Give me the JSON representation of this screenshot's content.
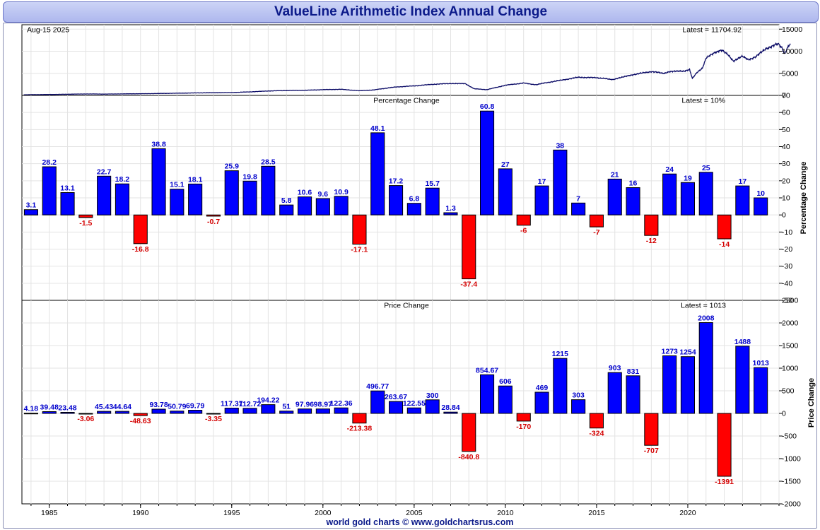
{
  "title": "ValueLine Arithmetic Index Annual Change",
  "footer": "world gold charts © www.goldchartsrus.com",
  "chart_data": [
    {
      "type": "line",
      "date_label": "Aug-15  2025",
      "latest_label": "Latest = 11704.92",
      "ylim": [
        0,
        16000
      ],
      "y_ticks": [
        0,
        5000,
        10000,
        15000
      ],
      "grid": true,
      "color": "#0b0b66",
      "points": [
        [
          1983.6,
          150
        ],
        [
          1985,
          200
        ],
        [
          1987,
          330
        ],
        [
          1988,
          300
        ],
        [
          1990,
          380
        ],
        [
          1991,
          430
        ],
        [
          1993,
          560
        ],
        [
          1995,
          650
        ],
        [
          1996,
          800
        ],
        [
          1997,
          1000
        ],
        [
          1998,
          1100
        ],
        [
          1999,
          1150
        ],
        [
          2000,
          1300
        ],
        [
          2001,
          1380
        ],
        [
          2002,
          1050
        ],
        [
          2002.8,
          1250
        ],
        [
          2003.5,
          1650
        ],
        [
          2004,
          1900
        ],
        [
          2005,
          2150
        ],
        [
          2006,
          2500
        ],
        [
          2007,
          2700
        ],
        [
          2007.8,
          2650
        ],
        [
          2008.3,
          1500
        ],
        [
          2009,
          1300
        ],
        [
          2009.5,
          1800
        ],
        [
          2010,
          2300
        ],
        [
          2011,
          2800
        ],
        [
          2011.7,
          2400
        ],
        [
          2012,
          2700
        ],
        [
          2013,
          3400
        ],
        [
          2014,
          4100
        ],
        [
          2015,
          4000
        ],
        [
          2015.9,
          3600
        ],
        [
          2016.5,
          4200
        ],
        [
          2017,
          4700
        ],
        [
          2018,
          5400
        ],
        [
          2018.7,
          5000
        ],
        [
          2019,
          5400
        ],
        [
          2019.8,
          5500
        ],
        [
          2020.1,
          5900
        ],
        [
          2020.25,
          3800
        ],
        [
          2020.5,
          5200
        ],
        [
          2020.8,
          6200
        ],
        [
          2021,
          8400
        ],
        [
          2021.5,
          9800
        ],
        [
          2021.9,
          10200
        ],
        [
          2022.2,
          9300
        ],
        [
          2022.5,
          7800
        ],
        [
          2022.8,
          8500
        ],
        [
          2023,
          8800
        ],
        [
          2023.3,
          8100
        ],
        [
          2023.7,
          8600
        ],
        [
          2024,
          9700
        ],
        [
          2024.3,
          10600
        ],
        [
          2024.8,
          11500
        ],
        [
          2025.0,
          11600
        ],
        [
          2025.15,
          10800
        ],
        [
          2025.3,
          9400
        ],
        [
          2025.45,
          10600
        ],
        [
          2025.62,
          11704.92
        ]
      ]
    },
    {
      "type": "bar",
      "panel_title": "Percentage Change",
      "latest_label": "Latest = 10%",
      "ylabel": "Percentage Change",
      "ylim": [
        -50,
        70
      ],
      "y_ticks": [
        -50,
        -40,
        -30,
        -20,
        -10,
        0,
        10,
        20,
        30,
        40,
        50,
        60,
        70
      ],
      "grid": true,
      "colors": {
        "positive": "#0000ff",
        "negative": "#ff0000",
        "positive_label": "#0000cc",
        "negative_label": "#d40000"
      },
      "x": [
        1984,
        1985,
        1986,
        1987,
        1988,
        1989,
        1990,
        1991,
        1992,
        1993,
        1994,
        1995,
        1996,
        1997,
        1998,
        1999,
        2000,
        2001,
        2002,
        2003,
        2004,
        2005,
        2006,
        2007,
        2008,
        2009,
        2010,
        2011,
        2012,
        2013,
        2014,
        2015,
        2016,
        2017,
        2018,
        2019,
        2020,
        2021,
        2022,
        2023,
        2024
      ],
      "values": [
        3.1,
        28.2,
        13.1,
        -1.5,
        22.7,
        18.2,
        -16.8,
        38.8,
        15.1,
        18.1,
        -0.7,
        25.9,
        19.8,
        28.5,
        5.8,
        10.6,
        9.6,
        10.9,
        -17.1,
        48.1,
        17.2,
        6.8,
        15.7,
        1.3,
        -37.4,
        60.8,
        27,
        -6,
        17,
        38,
        7,
        -7,
        21,
        16,
        -12,
        24,
        19,
        25,
        -14,
        17,
        10
      ],
      "labels": [
        "3.1",
        "28.2",
        "13.1",
        "-1.5",
        "22.7",
        "18.2",
        "-16.8",
        "38.8",
        "15.1",
        "18.1",
        "-0.7",
        "25.9",
        "19.8",
        "28.5",
        "5.8",
        "10.6",
        "9.6",
        "10.9",
        "-17.1",
        "48.1",
        "17.2",
        "6.8",
        "15.7",
        "1.3",
        "-37.4",
        "60.8",
        "27",
        "-6",
        "17",
        "38",
        "7",
        "-7",
        "21",
        "16",
        "-12",
        "24",
        "19",
        "25",
        "-14",
        "17",
        "10"
      ]
    },
    {
      "type": "bar",
      "panel_title": "Price Change",
      "latest_label": "Latest = 1013",
      "ylabel": "Price Change",
      "ylim": [
        -2000,
        2500
      ],
      "y_ticks": [
        -2000,
        -1500,
        -1000,
        -500,
        0,
        500,
        1000,
        1500,
        2000,
        2500
      ],
      "grid": true,
      "colors": {
        "positive": "#0000ff",
        "negative": "#ff0000",
        "positive_label": "#0000cc",
        "negative_label": "#d40000"
      },
      "x": [
        1984,
        1985,
        1986,
        1987,
        1988,
        1989,
        1990,
        1991,
        1992,
        1993,
        1994,
        1995,
        1996,
        1997,
        1998,
        1999,
        2000,
        2001,
        2002,
        2003,
        2004,
        2005,
        2006,
        2007,
        2008,
        2009,
        2010,
        2011,
        2012,
        2013,
        2014,
        2015,
        2016,
        2017,
        2018,
        2019,
        2020,
        2021,
        2022,
        2023,
        2024
      ],
      "values": [
        4.18,
        39.48,
        23.48,
        -3.06,
        45.43,
        44.64,
        -48.63,
        93.78,
        50.79,
        69.79,
        -3.35,
        117.37,
        112.72,
        194.22,
        51,
        97.96,
        98.97,
        122.36,
        -213.38,
        496.77,
        263.67,
        122.55,
        300,
        28.84,
        -840.8,
        854.67,
        606,
        -170,
        469,
        1215,
        303,
        -324,
        903,
        831,
        -707,
        1273,
        1254,
        2008,
        -1391,
        1488,
        1013
      ],
      "labels": [
        "4.18",
        "39.48",
        "23.48",
        "-3.06",
        "45.43",
        "44.64",
        "-48.63",
        "93.78",
        "50.79",
        "69.79",
        "-3.35",
        "117.37",
        "112.72",
        "194.22",
        "51",
        "97.96",
        "98.97",
        "122.36",
        "-213.38",
        "496.77",
        "263.67",
        "122.55",
        "300",
        "28.84",
        "-840.8",
        "854.67",
        "606",
        "-170",
        "469",
        "1215",
        "303",
        "-324",
        "903",
        "831",
        "-707",
        "1273",
        "1254",
        "2008",
        "-1391",
        "1488",
        "1013"
      ]
    }
  ],
  "x_axis": {
    "ticks": [
      1985,
      1990,
      1995,
      2000,
      2005,
      2010,
      2015,
      2020
    ],
    "labels": [
      "1985",
      "1990",
      "1995",
      "2000",
      "2005",
      "2010",
      "2015",
      "2020"
    ],
    "xlim": [
      1983.5,
      2025.0
    ]
  }
}
